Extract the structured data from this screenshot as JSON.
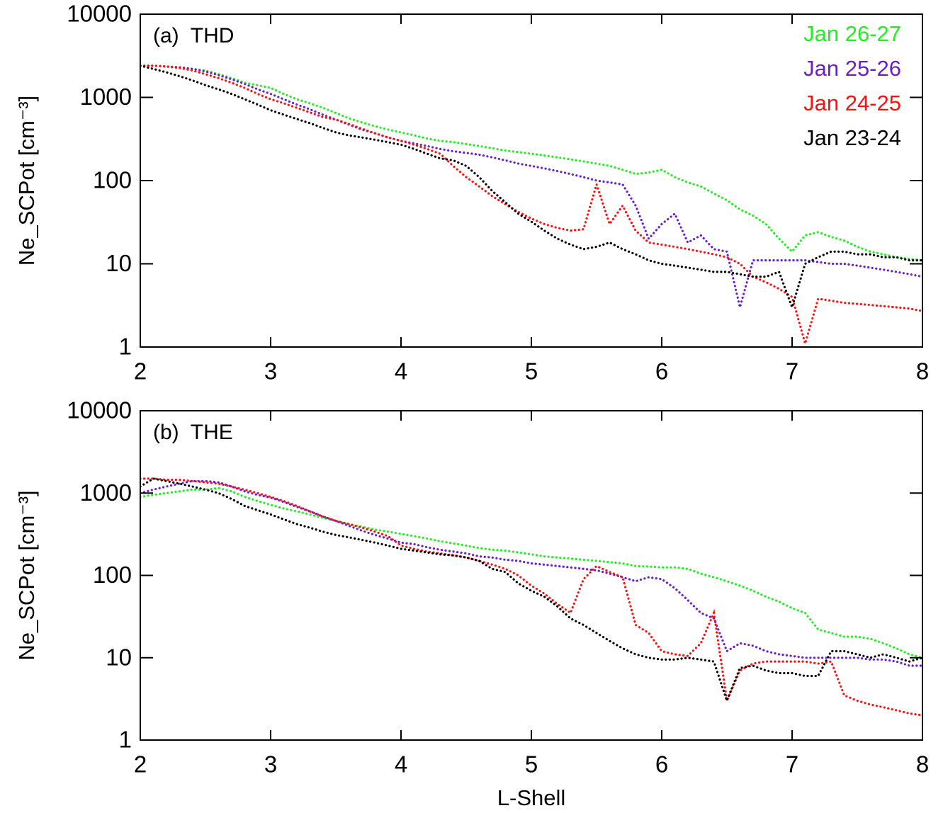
{
  "chart_data": [
    {
      "type": "line",
      "title": "(a)  THD",
      "ylabel": "Ne_SCPot [cm⁻³]",
      "log_y": true,
      "legend": "upper right",
      "xlim": [
        2,
        8
      ],
      "xticks": [
        2,
        3,
        4,
        5,
        6,
        7,
        8
      ],
      "ylim": [
        1,
        10000
      ],
      "yticks": [
        1,
        10,
        100,
        1000,
        10000
      ],
      "x": [
        2.0,
        2.1,
        2.2,
        2.3,
        2.4,
        2.5,
        2.6,
        2.7,
        2.8,
        2.9,
        3.0,
        3.1,
        3.2,
        3.3,
        3.4,
        3.5,
        3.6,
        3.7,
        3.8,
        3.9,
        4.0,
        4.1,
        4.2,
        4.3,
        4.4,
        4.5,
        4.6,
        4.7,
        4.8,
        4.9,
        5.0,
        5.1,
        5.2,
        5.3,
        5.4,
        5.5,
        5.6,
        5.7,
        5.8,
        5.9,
        6.0,
        6.1,
        6.2,
        6.3,
        6.4,
        6.5,
        6.6,
        6.7,
        6.8,
        6.9,
        7.0,
        7.1,
        7.2,
        7.3,
        7.4,
        7.5,
        7.6,
        7.7,
        7.8,
        7.9,
        8.0
      ],
      "series": [
        {
          "name": "Jan 26-27",
          "color": "#22ee22",
          "values": [
            2400,
            2400,
            2350,
            2300,
            2200,
            2100,
            1900,
            1700,
            1500,
            1400,
            1300,
            1100,
            950,
            850,
            750,
            650,
            560,
            500,
            450,
            410,
            380,
            350,
            320,
            300,
            290,
            275,
            260,
            245,
            230,
            220,
            210,
            200,
            190,
            180,
            170,
            160,
            150,
            135,
            120,
            125,
            135,
            110,
            95,
            85,
            70,
            58,
            45,
            38,
            30,
            20,
            14,
            22,
            24,
            21,
            19,
            16,
            14,
            13,
            12,
            11.5,
            11
          ]
        },
        {
          "name": "Jan 25-26",
          "color": "#6a1fcc",
          "values": [
            2400,
            2400,
            2350,
            2300,
            2200,
            2050,
            1850,
            1650,
            1450,
            1250,
            1100,
            950,
            820,
            720,
            620,
            540,
            470,
            410,
            370,
            330,
            300,
            280,
            260,
            240,
            225,
            215,
            205,
            190,
            175,
            160,
            150,
            140,
            130,
            120,
            110,
            100,
            95,
            90,
            50,
            20,
            30,
            40,
            18,
            22,
            15,
            14,
            3,
            11,
            11,
            11,
            11,
            11,
            10.5,
            10,
            10,
            9.5,
            9,
            8.5,
            8,
            7.5,
            7
          ]
        },
        {
          "name": "Jan 24-25",
          "color": "#ff1010",
          "values": [
            2400,
            2400,
            2350,
            2250,
            2100,
            1900,
            1700,
            1500,
            1300,
            1100,
            950,
            850,
            750,
            660,
            580,
            540,
            480,
            420,
            370,
            330,
            300,
            270,
            240,
            210,
            150,
            110,
            85,
            65,
            52,
            42,
            35,
            30,
            27,
            25,
            26,
            90,
            30,
            50,
            25,
            18,
            17,
            16,
            15,
            14,
            13,
            12,
            10,
            7,
            6,
            5,
            4,
            1.1,
            3.8,
            3.6,
            3.4,
            3.3,
            3.2,
            3.1,
            3,
            2.9,
            2.7
          ]
        },
        {
          "name": "Jan 23-24",
          "color": "#000000",
          "values": [
            2400,
            2200,
            2000,
            1800,
            1600,
            1400,
            1250,
            1100,
            950,
            820,
            700,
            620,
            550,
            490,
            430,
            380,
            350,
            330,
            310,
            290,
            270,
            240,
            210,
            185,
            175,
            150,
            110,
            75,
            55,
            40,
            32,
            25,
            20,
            17,
            15,
            16,
            18,
            15,
            13,
            11,
            10,
            9.5,
            9,
            8.5,
            8,
            8,
            7.5,
            7,
            7,
            8,
            3,
            10,
            12,
            14,
            14,
            13,
            13,
            12,
            12,
            11,
            11
          ]
        }
      ]
    },
    {
      "type": "line",
      "title": "(b)  THE",
      "ylabel": "Ne_SCPot [cm⁻³]",
      "xlabel": "L-Shell",
      "log_y": true,
      "xlim": [
        2,
        8
      ],
      "xticks": [
        2,
        3,
        4,
        5,
        6,
        7,
        8
      ],
      "ylim": [
        1,
        10000
      ],
      "yticks": [
        1,
        10,
        100,
        1000,
        10000
      ],
      "x": [
        2.0,
        2.1,
        2.2,
        2.3,
        2.4,
        2.5,
        2.6,
        2.7,
        2.8,
        2.9,
        3.0,
        3.1,
        3.2,
        3.3,
        3.4,
        3.5,
        3.6,
        3.7,
        3.8,
        3.9,
        4.0,
        4.1,
        4.2,
        4.3,
        4.4,
        4.5,
        4.6,
        4.7,
        4.8,
        4.9,
        5.0,
        5.1,
        5.2,
        5.3,
        5.4,
        5.5,
        5.6,
        5.7,
        5.8,
        5.9,
        6.0,
        6.1,
        6.2,
        6.3,
        6.4,
        6.5,
        6.6,
        6.7,
        6.8,
        6.9,
        7.0,
        7.1,
        7.2,
        7.3,
        7.4,
        7.5,
        7.6,
        7.7,
        7.8,
        7.9,
        8.0
      ],
      "series": [
        {
          "color": "#22ee22",
          "values": [
            900,
            950,
            1000,
            1050,
            1100,
            1100,
            1150,
            1050,
            900,
            800,
            720,
            650,
            600,
            550,
            500,
            460,
            420,
            390,
            360,
            340,
            320,
            300,
            280,
            260,
            245,
            230,
            215,
            205,
            200,
            190,
            180,
            170,
            165,
            160,
            155,
            150,
            145,
            140,
            130,
            128,
            125,
            125,
            120,
            105,
            95,
            85,
            75,
            65,
            55,
            48,
            40,
            35,
            22,
            20,
            18,
            18,
            17,
            15,
            13,
            11,
            10
          ]
        },
        {
          "color": "#6a1fcc",
          "values": [
            1000,
            1100,
            1200,
            1300,
            1400,
            1400,
            1350,
            1200,
            1050,
            950,
            880,
            780,
            680,
            600,
            520,
            460,
            400,
            350,
            310,
            280,
            250,
            240,
            220,
            205,
            195,
            185,
            170,
            165,
            155,
            150,
            140,
            135,
            130,
            125,
            120,
            115,
            105,
            95,
            85,
            95,
            90,
            70,
            50,
            35,
            30,
            12,
            15,
            14,
            12,
            11,
            10.5,
            10,
            10,
            10,
            10,
            10,
            9.5,
            9.5,
            9,
            8,
            8
          ]
        },
        {
          "color": "#ff1010",
          "values": [
            1500,
            1500,
            1450,
            1450,
            1400,
            1350,
            1300,
            1200,
            1100,
            1000,
            900,
            800,
            700,
            600,
            520,
            460,
            420,
            380,
            340,
            300,
            230,
            210,
            195,
            185,
            175,
            165,
            150,
            135,
            120,
            100,
            75,
            60,
            45,
            35,
            90,
            130,
            110,
            95,
            25,
            20,
            12,
            11,
            10.5,
            15,
            35,
            3,
            7,
            8.5,
            9,
            9,
            9,
            9,
            8.5,
            9,
            3.5,
            3,
            2.7,
            2.5,
            2.3,
            2.1,
            2
          ]
        },
        {
          "color": "#000000",
          "values": [
            1200,
            1500,
            1400,
            1300,
            1200,
            1100,
            1000,
            850,
            700,
            620,
            550,
            480,
            420,
            380,
            340,
            310,
            290,
            270,
            250,
            230,
            210,
            200,
            190,
            180,
            175,
            165,
            150,
            120,
            110,
            80,
            65,
            55,
            42,
            30,
            25,
            20,
            16,
            13,
            11,
            10,
            9.5,
            9.5,
            10,
            9.5,
            9,
            3,
            7.5,
            8,
            7,
            6.5,
            6.5,
            6,
            6,
            12,
            12,
            11,
            10,
            11,
            10,
            9,
            10
          ]
        }
      ]
    }
  ]
}
